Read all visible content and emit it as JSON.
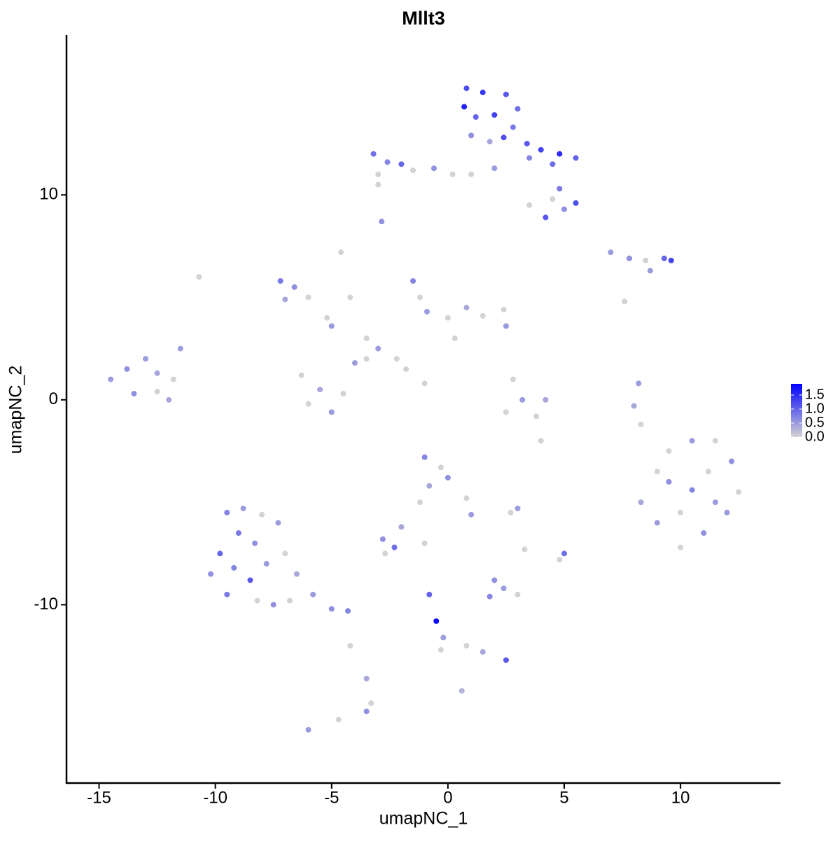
{
  "chart_data": {
    "type": "scatter",
    "title": "Mllt3",
    "x_label": "umapNC_1",
    "y_label": "umapNC_2",
    "xlim": [
      -16.4,
      14.3
    ],
    "ylim": [
      -18.7,
      17.8
    ],
    "xticks": [
      -15,
      -10,
      -5,
      0,
      5,
      10
    ],
    "yticks": [
      -10,
      0,
      10
    ],
    "color_low": "#d3d3d3",
    "color_high": "#0000ff",
    "colorbar_lim": [
      0,
      1.9
    ],
    "colorbar_ticks": [
      {
        "value": 0,
        "label": "0.0"
      },
      0.5,
      {
        "value": 1,
        "label": "1.0"
      },
      1.5
    ],
    "x": [
      0.8,
      1.5,
      2.5,
      3.0,
      0.7,
      1.2,
      2.0,
      2.8,
      1.0,
      1.8,
      2.4,
      3.4,
      4.0,
      4.8,
      5.5,
      4.5,
      3.5,
      1.0,
      2.0,
      4.8,
      5.5,
      5.0,
      4.2,
      4.5,
      3.5,
      -3.2,
      -2.6,
      -2.0,
      -3.0,
      -1.5,
      -0.6,
      0.2,
      -3.0,
      -2.85,
      7.0,
      7.8,
      8.5,
      9.3,
      9.6,
      8.7,
      7.6,
      -7.2,
      -6.6,
      -7.0,
      -6.0,
      -5.2,
      -5.0,
      -4.6,
      -4.2,
      -3.5,
      -3.0,
      -2.2,
      -1.5,
      -1.2,
      -0.9,
      0,
      0.8,
      1.5,
      2.4,
      2.5,
      0.3,
      -1.8,
      -1.0,
      -6.3,
      -5.5,
      -4.5,
      -5.0,
      -6.0,
      -4.0,
      -3.5,
      -14.5,
      -13.8,
      -13.0,
      -12.5,
      -13.5,
      -12.5,
      -11.8,
      -11.5,
      -12.0,
      -10.7,
      2.8,
      3.2,
      2.5,
      3.8,
      4.2,
      4.0,
      8.2,
      8.0,
      8.3,
      9.5,
      10.5,
      11.5,
      12.2,
      12.5,
      12.0,
      11.0,
      10.0,
      9.0,
      8.3,
      9.5,
      10.5,
      11.2,
      10.0,
      11.5,
      9.0,
      -1.0,
      -0.3,
      0,
      -0.8,
      0.8,
      1.0,
      -1.2,
      -2.0,
      -2.8,
      -2.3,
      -2.7,
      -1.0,
      3.0,
      2.7,
      -9.5,
      -8.8,
      -8.0,
      -9.0,
      -8.3,
      -7.3,
      -9.8,
      -10.2,
      -9.2,
      -8.5,
      -7.8,
      -7.0,
      -6.5,
      -5.8,
      -5.0,
      -4.3,
      -9.5,
      -8.2,
      -7.5,
      -6.8,
      2.0,
      2.4,
      1.8,
      3.0,
      5.0,
      4.8,
      3.3,
      -0.8,
      -0.5,
      -0.2,
      -0.3,
      0.8,
      1.5,
      2.5,
      0.6,
      -3.5,
      -3.3,
      -3.5,
      -4.2,
      -4.7,
      -6.0
    ],
    "series": [
      {
        "name": "Mllt3",
        "values": [
          15.2,
          15.0,
          14.9,
          14.2,
          14.3,
          13.8,
          13.9,
          13.3,
          12.9,
          12.6,
          12.8,
          12.5,
          12.2,
          12.0,
          11.8,
          11.5,
          11.8,
          11.0,
          11.3,
          10.3,
          9.6,
          9.3,
          8.9,
          9.8,
          9.5,
          12.0,
          11.6,
          11.5,
          11.0,
          11.2,
          11.3,
          11.0,
          10.5,
          8.7,
          7.2,
          6.9,
          6.8,
          6.9,
          6.8,
          6.3,
          4.8,
          5.8,
          5.5,
          4.9,
          5.0,
          4.0,
          3.6,
          7.2,
          5.0,
          3.0,
          2.5,
          2.0,
          5.8,
          5.0,
          4.3,
          4.0,
          4.5,
          4.1,
          4.4,
          3.6,
          3.0,
          1.5,
          0.8,
          1.2,
          0.5,
          0.3,
          -0.6,
          -0.2,
          1.8,
          2.0,
          1.0,
          1.5,
          2.0,
          1.3,
          0.3,
          0.4,
          1.0,
          2.5,
          0,
          6.0,
          1.0,
          0,
          -0.6,
          -0.8,
          0,
          -2.0,
          0.8,
          -0.3,
          -1.2,
          -2.5,
          -2.0,
          -2.0,
          -3.0,
          -4.5,
          -5.5,
          -6.5,
          -7.2,
          -6.0,
          -5.0,
          -4.0,
          -4.4,
          -3.5,
          -5.5,
          -5.0,
          -3.5,
          -2.8,
          -3.3,
          -3.8,
          -4.2,
          -4.8,
          -5.6,
          -5.0,
          -6.2,
          -6.8,
          -7.2,
          -7.5,
          -7.0,
          -5.3,
          -5.5,
          -5.5,
          -5.3,
          -5.6,
          -6.5,
          -7.0,
          -6.0,
          -7.5,
          -8.5,
          -8.2,
          -8.8,
          -8.0,
          -7.5,
          -8.5,
          -9.5,
          -10.2,
          -10.3,
          -9.5,
          -9.8,
          -10.0,
          -9.8,
          -8.8,
          -9.2,
          -9.6,
          -9.5,
          -7.5,
          -7.8,
          -7.3,
          -9.5,
          -10.8,
          -11.6,
          -12.2,
          -12.0,
          -12.3,
          -12.7,
          -14.2,
          -13.6,
          -14.8,
          -15.2,
          -12.0,
          -15.6,
          -16.1
        ],
        "expression": [
          1.2,
          1.4,
          1.1,
          0.9,
          1.6,
          1.0,
          1.3,
          0.8,
          0.6,
          0.4,
          1.2,
          1.1,
          1.3,
          1.5,
          1.0,
          0.9,
          0.7,
          0,
          0.5,
          0.8,
          1.2,
          0.6,
          1.1,
          0,
          0,
          0.9,
          0.7,
          1.0,
          0,
          0,
          0.6,
          0,
          0,
          0.6,
          0.5,
          0.6,
          0,
          1.0,
          1.3,
          0.5,
          0,
          0.8,
          0.6,
          0.4,
          0,
          0,
          0.5,
          0,
          0,
          0,
          0.5,
          0,
          0.7,
          0,
          0.5,
          0,
          0.4,
          0,
          0,
          0.5,
          0,
          0,
          0,
          0,
          0.4,
          0,
          0.5,
          0,
          0.5,
          0,
          0.5,
          0.6,
          0.5,
          0.4,
          0.6,
          0,
          0,
          0.5,
          0.4,
          0,
          0,
          0.5,
          0,
          0,
          0.4,
          0,
          0.5,
          0.4,
          0,
          0,
          0.5,
          0,
          0.6,
          0,
          0.5,
          0.6,
          0,
          0.5,
          0.4,
          0.6,
          0.7,
          0,
          0,
          0.5,
          0,
          0.7,
          0,
          0.6,
          0.4,
          0,
          0.5,
          0,
          0.4,
          0.6,
          0.9,
          0,
          0,
          0.5,
          0,
          0.7,
          0.5,
          0,
          0.8,
          0.6,
          0.5,
          1.0,
          0.6,
          0.7,
          1.1,
          0.5,
          0,
          0.4,
          0.5,
          0.6,
          0.7,
          0.8,
          0,
          0.6,
          0,
          0.6,
          0.5,
          0.7,
          0,
          0.9,
          0,
          0,
          1.0,
          1.8,
          0.5,
          0,
          0,
          0.4,
          1.1,
          0.3,
          0.4,
          0,
          0.6,
          0,
          0,
          0.5
        ]
      }
    ]
  }
}
